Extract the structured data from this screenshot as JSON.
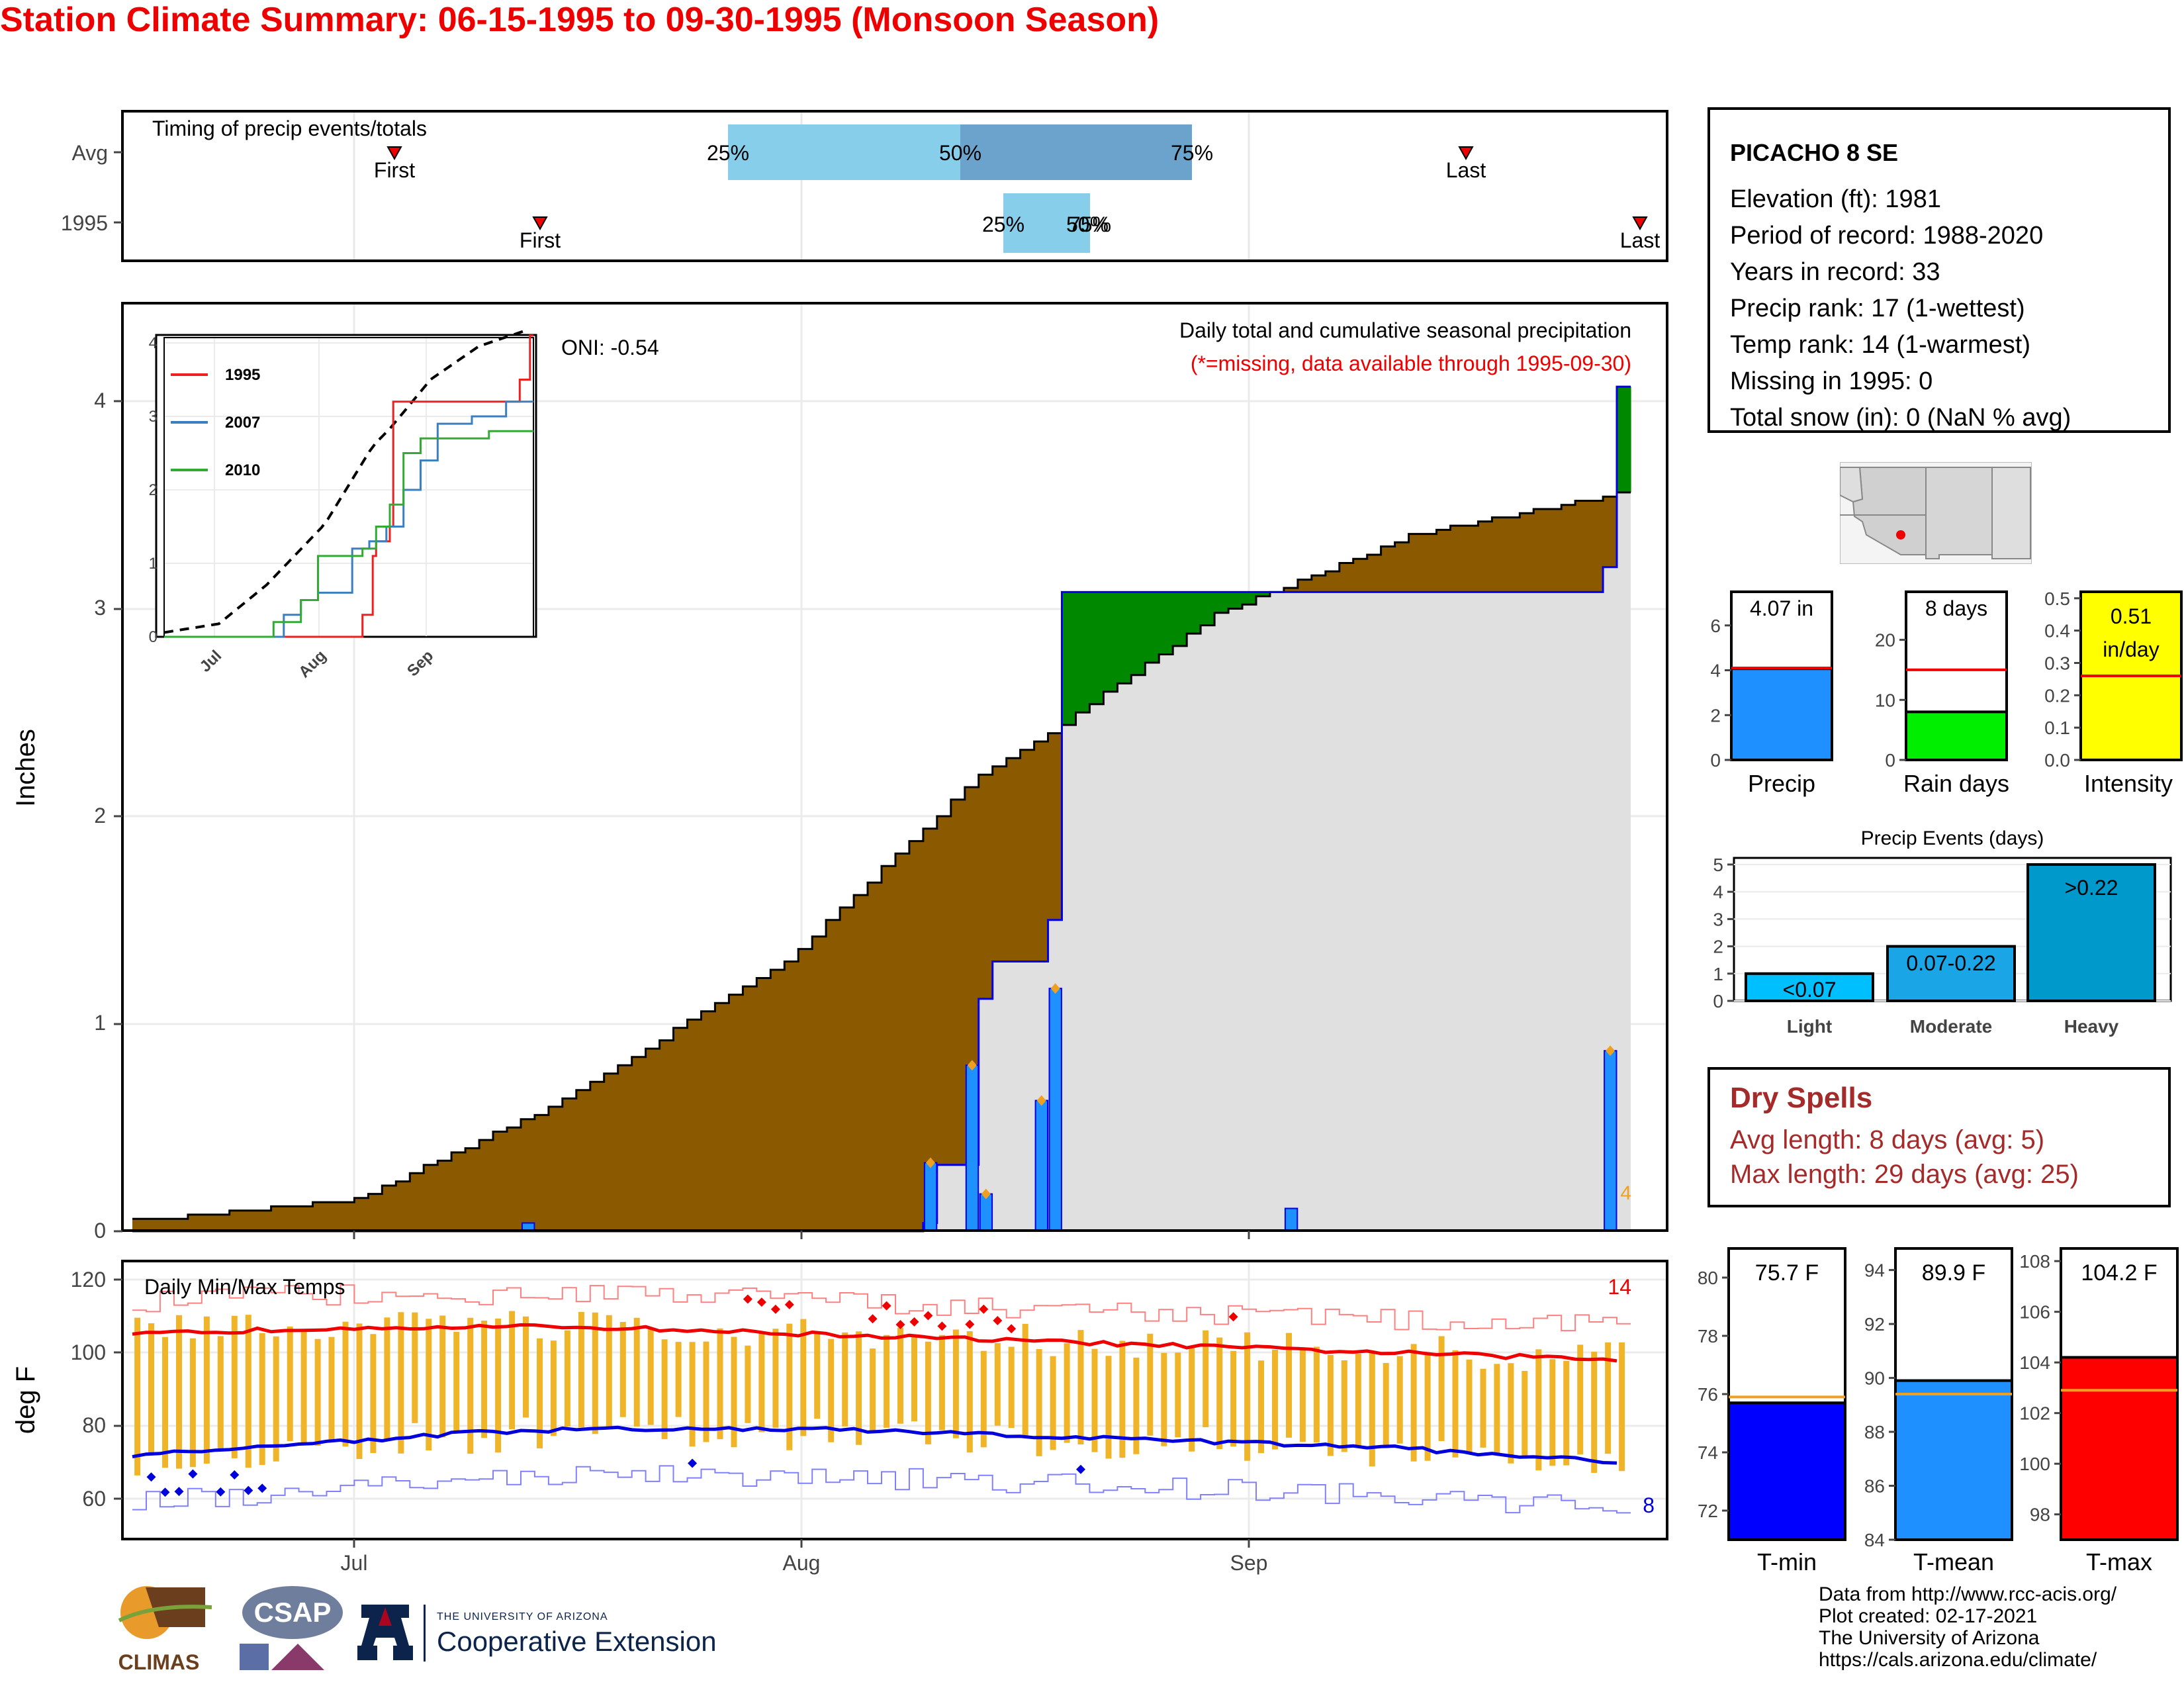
{
  "title": "Station Climate Summary: 06-15-1995 to 09-30-1995 (Monsoon Season)",
  "colors": {
    "title": "#ee0000",
    "accum": "#8b5a00",
    "excess": "#008800",
    "daily": "#1e90ff",
    "outline": "#0000ee",
    "missing_fill": "#e0e0e0",
    "tmax": "#ee0000",
    "tmin": "#0000dd",
    "trange": "#f0b429"
  },
  "months": [
    "Jul",
    "Aug",
    "Sep"
  ],
  "timing": {
    "label": "Timing of precip events/totals",
    "rows": [
      "Avg",
      "1995"
    ],
    "avg": {
      "first_label": "First",
      "last_label": "Last",
      "p25": "25%",
      "p50": "50%",
      "p75": "75%"
    },
    "y1995": {
      "first_label": "First",
      "last_label": "Last",
      "p25": "25%",
      "p50": "50%",
      "p75": "75%"
    }
  },
  "precip_panel": {
    "ylabel": "Inches",
    "y_ticks": [
      "0",
      "1",
      "2",
      "3",
      "4"
    ],
    "oni": "ONI: -0.54",
    "desc": "Daily total and cumulative seasonal precipitation",
    "missing_note": "(*=missing, data available through 1995-09-30)",
    "missing_count": "4",
    "inset": {
      "series": [
        "1995",
        "2007",
        "2010"
      ],
      "y_ticks": [
        "0",
        "1",
        "2",
        "3",
        "4"
      ],
      "x_ticks": [
        "Jul",
        "Aug",
        "Sep"
      ]
    }
  },
  "temp_panel": {
    "label": "Daily Min/Max Temps",
    "ylabel": "deg F",
    "y_ticks": [
      "60",
      "80",
      "100",
      "120"
    ],
    "max_count": "14",
    "min_count": "8"
  },
  "station": {
    "name": "PICACHO 8 SE",
    "lines": [
      "Elevation (ft): 1981",
      "Period of record: 1988-2020",
      "Years in record: 33",
      "Precip rank: 17 (1-wettest)",
      "Temp rank: 14 (1-warmest)",
      "Missing in 1995: 0",
      "Total snow (in): 0 (NaN % avg)"
    ]
  },
  "summary_bars": {
    "precip": {
      "label": "Precip",
      "value_text": "4.07 in",
      "value": 4.07,
      "avg": 4.1,
      "ymax": 7.5,
      "ticks": [
        "0",
        "2",
        "4",
        "6"
      ]
    },
    "rain_days": {
      "label": "Rain days",
      "value_text": "8 days",
      "value": 8,
      "avg": 15,
      "ymax": 28,
      "ticks": [
        "0",
        "10",
        "20"
      ]
    },
    "intensity": {
      "label": "Intensity",
      "value_text": "0.51",
      "value_unit": "in/day",
      "value": 0.51,
      "avg": 0.26,
      "ymax": 0.52,
      "ticks": [
        "0.0",
        "0.1",
        "0.2",
        "0.3",
        "0.4",
        "0.5"
      ]
    }
  },
  "events": {
    "title": "Precip Events (days)",
    "ticks": [
      "0",
      "1",
      "2",
      "3",
      "4",
      "5"
    ],
    "categories": [
      "Light",
      "Moderate",
      "Heavy"
    ],
    "values": [
      1,
      2,
      5
    ],
    "bar_labels": [
      "<0.07",
      "0.07-0.22",
      ">0.22"
    ]
  },
  "dry_spells": {
    "title": "Dry Spells",
    "avg_line": "Avg length: 8 days (avg: 5)",
    "max_line": "Max length: 29 days (avg: 25)"
  },
  "temp_bars": {
    "tmin": {
      "label": "T-min",
      "value_text": "75.7 F",
      "value": 75.7,
      "avg": 75.9,
      "ymin": 71,
      "ymax": 81,
      "ticks": [
        "72",
        "74",
        "76",
        "78",
        "80"
      ]
    },
    "tmean": {
      "label": "T-mean",
      "value_text": "89.9 F",
      "value": 89.9,
      "avg": 89.4,
      "ymin": 84,
      "ymax": 94.8,
      "ticks": [
        "84",
        "86",
        "88",
        "90",
        "92",
        "94"
      ]
    },
    "tmax": {
      "label": "T-max",
      "value_text": "104.2 F",
      "value": 104.2,
      "avg": 102.9,
      "ymin": 97,
      "ymax": 108.5,
      "ticks": [
        "98",
        "100",
        "102",
        "104",
        "106",
        "108"
      ]
    }
  },
  "credits": [
    "Data from http://www.rcc-acis.org/",
    "Plot created: 02-17-2021",
    "The University of Arizona",
    "https://cals.arizona.edu/climate/"
  ],
  "logos": {
    "climas": "CLIMAS",
    "csap": "CSAP",
    "ua_small": "THE UNIVERSITY OF ARIZONA",
    "ua_big": "Cooperative Extension"
  },
  "chart_data": [
    {
      "type": "line",
      "title": "Daily total and cumulative seasonal precipitation",
      "ylabel": "Inches",
      "ylim": [
        0,
        4.5
      ],
      "x_range": [
        "1995-06-15",
        "1995-09-30"
      ],
      "series": [
        {
          "name": "1995 cumulative",
          "x": [
            "1995-06-15",
            "1995-08-11",
            "1995-08-12",
            "1995-08-15",
            "1995-08-16",
            "1995-08-20",
            "1995-08-21",
            "1995-09-02",
            "1995-09-29",
            "1995-09-30"
          ],
          "values": [
            0,
            0.04,
            0.32,
            1.12,
            1.3,
            1.5,
            3.08,
            3.08,
            3.2,
            4.07
          ]
        },
        {
          "name": "Average cumulative",
          "x": [
            "1995-06-15",
            "1995-07-01",
            "1995-07-15",
            "1995-08-01",
            "1995-08-15",
            "1995-08-20",
            "1995-09-01",
            "1995-09-15",
            "1995-09-30"
          ],
          "values": [
            0.05,
            0.15,
            0.6,
            1.3,
            2.2,
            2.4,
            2.97,
            3.35,
            3.55
          ]
        }
      ],
      "daily": {
        "x": [
          "1995-07-13",
          "1995-08-11",
          "1995-08-14",
          "1995-08-15",
          "1995-08-19",
          "1995-08-20",
          "1995-09-06",
          "1995-09-29"
        ],
        "values": [
          0.04,
          0.33,
          0.8,
          0.18,
          0.63,
          1.17,
          0.11,
          0.87
        ]
      }
    },
    {
      "type": "line",
      "title": "Daily Min/Max Temps",
      "ylabel": "deg F",
      "ylim": [
        48,
        122
      ],
      "series": [
        {
          "name": "avg max",
          "values": [
            105,
            106,
            107,
            107,
            107,
            106,
            105,
            104,
            103,
            102,
            101,
            100,
            99,
            98
          ]
        },
        {
          "name": "avg min",
          "values": [
            72,
            74,
            76,
            78,
            79,
            79,
            79,
            78,
            77,
            76,
            75,
            74,
            72,
            70
          ]
        }
      ]
    },
    {
      "type": "bar",
      "title": "Precip Events (days)",
      "categories": [
        "Light",
        "Moderate",
        "Heavy"
      ],
      "values": [
        1,
        2,
        5
      ]
    },
    {
      "type": "line",
      "series": [
        {
          "name": "1995"
        },
        {
          "name": "2007"
        },
        {
          "name": "2010"
        }
      ],
      "x_ticks": [
        "Jul",
        "Aug",
        "Sep"
      ],
      "ylim": [
        0,
        4
      ]
    }
  ]
}
